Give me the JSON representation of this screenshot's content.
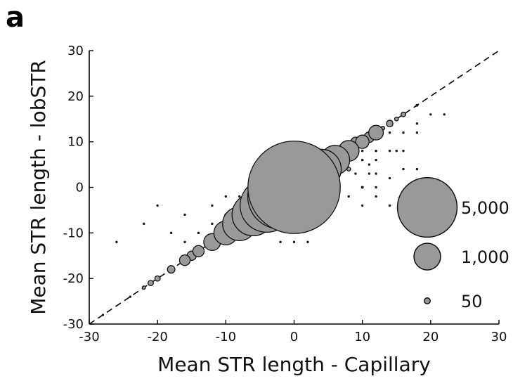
{
  "panel_label": "a",
  "chart_data": {
    "type": "scatter",
    "title": "",
    "xlabel": "Mean STR length - Capillary",
    "ylabel": "Mean STR length - lobSTR",
    "xlim": [
      -30,
      30
    ],
    "ylim": [
      -30,
      30
    ],
    "xticks": [
      -30,
      -20,
      -10,
      0,
      10,
      20,
      30
    ],
    "yticks": [
      -30,
      -20,
      -10,
      0,
      10,
      20,
      30
    ],
    "grid": false,
    "reference_line": {
      "style": "dashed",
      "from": [
        -30,
        -30
      ],
      "to": [
        30,
        30
      ]
    },
    "point_size_encodes": "number of loci",
    "color": "#999999",
    "legend": {
      "placement": "bottom-right",
      "entries": [
        {
          "label": "5,000",
          "size": 5000
        },
        {
          "label": "1,000",
          "size": 1000
        },
        {
          "label": "50",
          "size": 50
        }
      ]
    },
    "points": [
      {
        "x": 0,
        "y": 0,
        "size": 12000
      },
      {
        "x": -2,
        "y": -2,
        "size": 6000
      },
      {
        "x": -4,
        "y": -4,
        "size": 4000
      },
      {
        "x": 2,
        "y": 2,
        "size": 3500
      },
      {
        "x": -6,
        "y": -6,
        "size": 2500
      },
      {
        "x": 4,
        "y": 4,
        "size": 2200
      },
      {
        "x": -8,
        "y": -8,
        "size": 1600
      },
      {
        "x": 6,
        "y": 6,
        "size": 1200
      },
      {
        "x": -10,
        "y": -10,
        "size": 800
      },
      {
        "x": 8,
        "y": 8,
        "size": 600
      },
      {
        "x": -12,
        "y": -12,
        "size": 400
      },
      {
        "x": 10,
        "y": 10,
        "size": 250
      },
      {
        "x": 12,
        "y": 12,
        "size": 300
      },
      {
        "x": -14,
        "y": -14,
        "size": 180
      },
      {
        "x": -15,
        "y": -15,
        "size": 120
      },
      {
        "x": -16,
        "y": -16,
        "size": 160
      },
      {
        "x": 9,
        "y": 10,
        "size": 120
      },
      {
        "x": 11,
        "y": 11,
        "size": 150
      },
      {
        "x": -18,
        "y": -18,
        "size": 80
      },
      {
        "x": 14,
        "y": 14,
        "size": 60
      },
      {
        "x": -20,
        "y": -20,
        "size": 40
      },
      {
        "x": -21,
        "y": -21,
        "size": 40
      },
      {
        "x": 16,
        "y": 16,
        "size": 30
      },
      {
        "x": -22,
        "y": -22,
        "size": 15
      },
      {
        "x": 13,
        "y": 13,
        "size": 20
      },
      {
        "x": 15,
        "y": 15,
        "size": 20
      },
      {
        "x": 18,
        "y": 18,
        "size": 8
      },
      {
        "x": -24,
        "y": -24,
        "size": 5
      },
      {
        "x": -28,
        "y": -28,
        "size": 5
      },
      {
        "x": 6,
        "y": 0,
        "size": 30
      },
      {
        "x": 8,
        "y": 4,
        "size": 20
      },
      {
        "x": 7,
        "y": 5,
        "size": 15
      },
      {
        "x": -4,
        "y": 0,
        "size": 10
      },
      {
        "x": -6,
        "y": -2,
        "size": 10
      },
      {
        "x": -10,
        "y": -6,
        "size": 8
      },
      {
        "x": -4,
        "y": 4,
        "size": 6
      },
      {
        "x": 10,
        "y": 6,
        "size": 6
      },
      {
        "x": 10,
        "y": 0,
        "size": 8
      },
      {
        "x": 12,
        "y": 8,
        "size": 6
      },
      {
        "x": 12,
        "y": 6,
        "size": 5
      },
      {
        "x": 12,
        "y": 0,
        "size": 5
      },
      {
        "x": 14,
        "y": 8,
        "size": 4
      },
      {
        "x": 14,
        "y": 12,
        "size": 4
      },
      {
        "x": 16,
        "y": 12,
        "size": 4
      },
      {
        "x": 15,
        "y": 8,
        "size": 3
      },
      {
        "x": 9,
        "y": 3,
        "size": 4
      },
      {
        "x": 11,
        "y": 3,
        "size": 4
      },
      {
        "x": 11,
        "y": 5,
        "size": 4
      },
      {
        "x": 18,
        "y": 12,
        "size": 3
      },
      {
        "x": 16,
        "y": 8,
        "size": 3
      },
      {
        "x": 20,
        "y": 16,
        "size": 2
      },
      {
        "x": 22,
        "y": 16,
        "size": 2
      },
      {
        "x": 18,
        "y": 14,
        "size": 2
      },
      {
        "x": -8,
        "y": -4,
        "size": 3
      },
      {
        "x": -12,
        "y": -4,
        "size": 3
      },
      {
        "x": -12,
        "y": -8,
        "size": 3
      },
      {
        "x": -14,
        "y": -10,
        "size": 3
      },
      {
        "x": -8,
        "y": -2,
        "size": 3
      },
      {
        "x": -6,
        "y": -8,
        "size": 3
      },
      {
        "x": -10,
        "y": -2,
        "size": 3
      },
      {
        "x": -16,
        "y": -12,
        "size": 2
      },
      {
        "x": -20,
        "y": -4,
        "size": 2
      },
      {
        "x": -18,
        "y": -10,
        "size": 2
      },
      {
        "x": -16,
        "y": -6,
        "size": 2
      },
      {
        "x": -26,
        "y": -12,
        "size": 2
      },
      {
        "x": -22,
        "y": -8,
        "size": 2
      },
      {
        "x": -2,
        "y": -12,
        "size": 2
      },
      {
        "x": 0,
        "y": -12,
        "size": 2
      },
      {
        "x": 2,
        "y": -12,
        "size": 2
      },
      {
        "x": -6,
        "y": 2,
        "size": 4
      },
      {
        "x": 10,
        "y": -4,
        "size": 3
      },
      {
        "x": 14,
        "y": -4,
        "size": 2
      },
      {
        "x": 12,
        "y": -2,
        "size": 3
      },
      {
        "x": 6,
        "y": -2,
        "size": 3
      },
      {
        "x": 12,
        "y": 3,
        "size": 3
      },
      {
        "x": 18,
        "y": 4,
        "size": 2
      },
      {
        "x": 14,
        "y": 2,
        "size": 2
      },
      {
        "x": 8,
        "y": -2,
        "size": 3
      },
      {
        "x": 10,
        "y": 8,
        "size": 4
      },
      {
        "x": 16,
        "y": 4,
        "size": 2
      }
    ]
  }
}
